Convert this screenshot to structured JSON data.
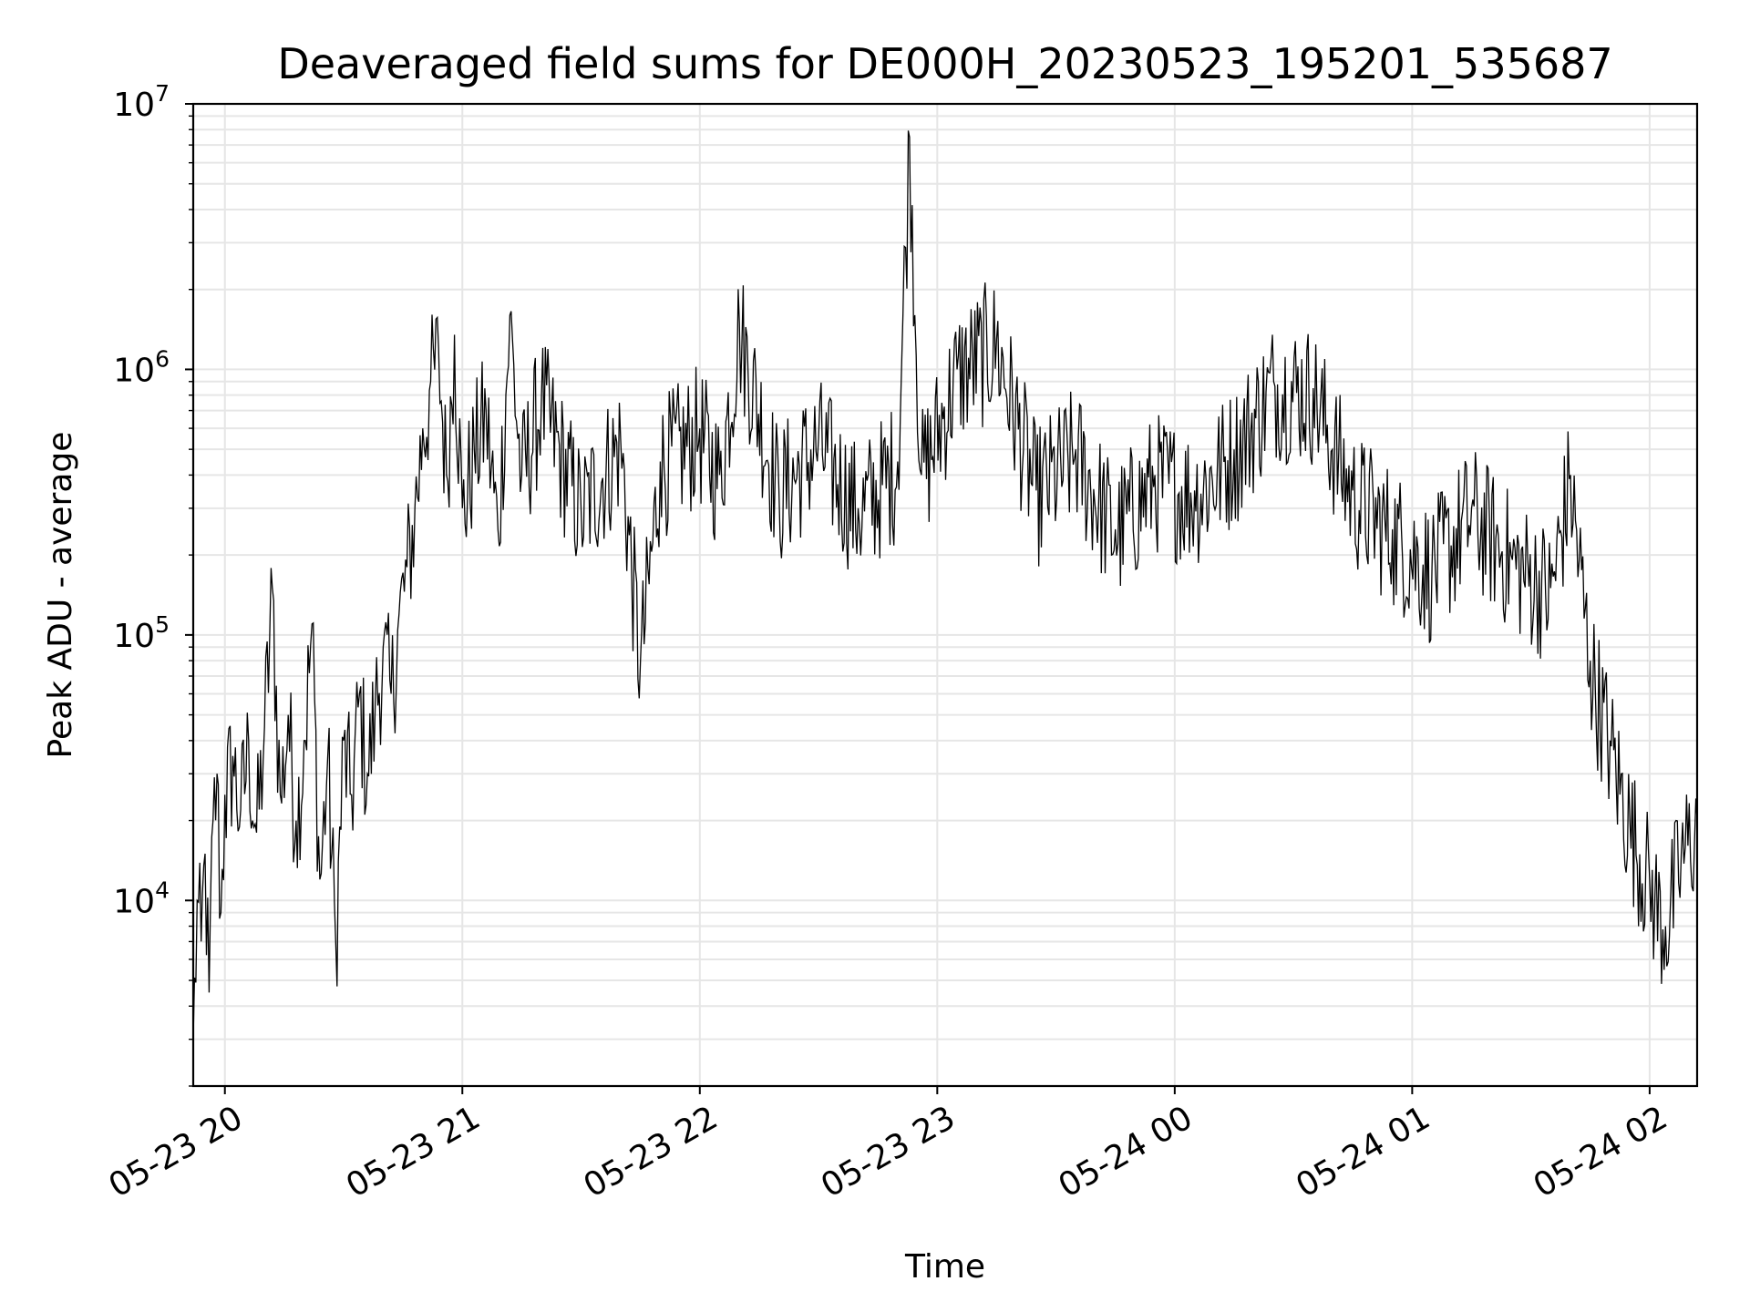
{
  "chart_data": {
    "type": "line",
    "title": "Deaveraged field sums for DE000H_20230523_195201_535687",
    "xlabel": "Time",
    "ylabel": "Peak ADU - average",
    "yscale": "log",
    "ylim": [
      2000,
      10000000
    ],
    "xlim": [
      "2023-05-23 19:52",
      "2023-05-24 02:12"
    ],
    "grid": true,
    "grid_color": "#e6e6e6",
    "line_color": "#000000",
    "x_ticks": [
      {
        "label": "05-23 20",
        "time": "2023-05-23 20:00"
      },
      {
        "label": "05-23 21",
        "time": "2023-05-23 21:00"
      },
      {
        "label": "05-23 22",
        "time": "2023-05-23 22:00"
      },
      {
        "label": "05-23 23",
        "time": "2023-05-23 23:00"
      },
      {
        "label": "05-24 00",
        "time": "2023-05-24 00:00"
      },
      {
        "label": "05-24 01",
        "time": "2023-05-24 01:00"
      },
      {
        "label": "05-24 02",
        "time": "2023-05-24 02:00"
      }
    ],
    "y_ticks": [
      {
        "base": "10",
        "exp": "4",
        "value": 10000
      },
      {
        "base": "10",
        "exp": "5",
        "value": 100000
      },
      {
        "base": "10",
        "exp": "6",
        "value": 1000000
      },
      {
        "base": "10",
        "exp": "7",
        "value": 10000000
      }
    ],
    "series": [
      {
        "points": [
          [
            "2023-05-23 19:52",
            3000
          ],
          [
            "2023-05-23 19:53",
            10000
          ],
          [
            "2023-05-23 19:54",
            7000
          ],
          [
            "2023-05-23 19:55",
            15000
          ],
          [
            "2023-05-23 19:56",
            4500
          ],
          [
            "2023-05-23 19:57",
            20000
          ],
          [
            "2023-05-23 19:58",
            30000
          ],
          [
            "2023-05-23 19:59",
            9000
          ],
          [
            "2023-05-23 20:00",
            25000
          ],
          [
            "2023-05-23 20:02",
            35000
          ],
          [
            "2023-05-23 20:04",
            22000
          ],
          [
            "2023-05-23 20:06",
            40000
          ],
          [
            "2023-05-23 20:08",
            18000
          ],
          [
            "2023-05-23 20:10",
            45000
          ],
          [
            "2023-05-23 20:12",
            150000
          ],
          [
            "2023-05-23 20:14",
            25000
          ],
          [
            "2023-05-23 20:16",
            50000
          ],
          [
            "2023-05-23 20:18",
            20000
          ],
          [
            "2023-05-23 20:20",
            40000
          ],
          [
            "2023-05-23 20:22",
            110000
          ],
          [
            "2023-05-23 20:24",
            12000
          ],
          [
            "2023-05-23 20:26",
            35000
          ],
          [
            "2023-05-23 20:28",
            7000
          ],
          [
            "2023-05-23 20:30",
            40000
          ],
          [
            "2023-05-23 20:32",
            25000
          ],
          [
            "2023-05-23 20:34",
            60000
          ],
          [
            "2023-05-23 20:36",
            30000
          ],
          [
            "2023-05-23 20:38",
            55000
          ],
          [
            "2023-05-23 20:40",
            90000
          ],
          [
            "2023-05-23 20:42",
            60000
          ],
          [
            "2023-05-23 20:44",
            120000
          ],
          [
            "2023-05-23 20:46",
            180000
          ],
          [
            "2023-05-23 20:48",
            300000
          ],
          [
            "2023-05-23 20:50",
            600000
          ],
          [
            "2023-05-23 20:52",
            900000
          ],
          [
            "2023-05-23 20:54",
            1200000
          ],
          [
            "2023-05-23 20:56",
            400000
          ],
          [
            "2023-05-23 20:58",
            1350000
          ],
          [
            "2023-05-23 21:00",
            300000
          ],
          [
            "2023-05-23 21:03",
            500000
          ],
          [
            "2023-05-23 21:06",
            700000
          ],
          [
            "2023-05-23 21:09",
            250000
          ],
          [
            "2023-05-23 21:12",
            1600000
          ],
          [
            "2023-05-23 21:15",
            400000
          ],
          [
            "2023-05-23 21:20",
            800000
          ],
          [
            "2023-05-23 21:30",
            300000
          ],
          [
            "2023-05-23 21:40",
            550000
          ],
          [
            "2023-05-23 21:45",
            80000
          ],
          [
            "2023-05-23 21:50",
            450000
          ],
          [
            "2023-05-23 22:00",
            600000
          ],
          [
            "2023-05-23 22:05",
            400000
          ],
          [
            "2023-05-23 22:10",
            1500000
          ],
          [
            "2023-05-23 22:20",
            350000
          ],
          [
            "2023-05-23 22:30",
            550000
          ],
          [
            "2023-05-23 22:40",
            300000
          ],
          [
            "2023-05-23 22:50",
            450000
          ],
          [
            "2023-05-23 22:53",
            7500000
          ],
          [
            "2023-05-23 22:56",
            400000
          ],
          [
            "2023-05-23 23:05",
            1000000
          ],
          [
            "2023-05-23 23:15",
            1300000
          ],
          [
            "2023-05-23 23:25",
            350000
          ],
          [
            "2023-05-23 23:35",
            500000
          ],
          [
            "2023-05-23 23:45",
            250000
          ],
          [
            "2023-05-23 23:55",
            400000
          ],
          [
            "2023-05-24 00:05",
            350000
          ],
          [
            "2023-05-24 00:15",
            500000
          ],
          [
            "2023-05-24 00:25",
            900000
          ],
          [
            "2023-05-24 00:35",
            850000
          ],
          [
            "2023-05-24 00:45",
            350000
          ],
          [
            "2023-05-24 00:55",
            250000
          ],
          [
            "2023-05-24 01:05",
            180000
          ],
          [
            "2023-05-24 01:15",
            300000
          ],
          [
            "2023-05-24 01:25",
            200000
          ],
          [
            "2023-05-24 01:35",
            150000
          ],
          [
            "2023-05-24 01:40",
            400000
          ],
          [
            "2023-05-24 01:45",
            80000
          ],
          [
            "2023-05-24 01:50",
            40000
          ],
          [
            "2023-05-24 01:55",
            20000
          ],
          [
            "2023-05-24 02:00",
            12000
          ],
          [
            "2023-05-24 02:04",
            8000
          ],
          [
            "2023-05-24 02:08",
            15000
          ],
          [
            "2023-05-24 02:12",
            20000
          ]
        ]
      }
    ]
  }
}
